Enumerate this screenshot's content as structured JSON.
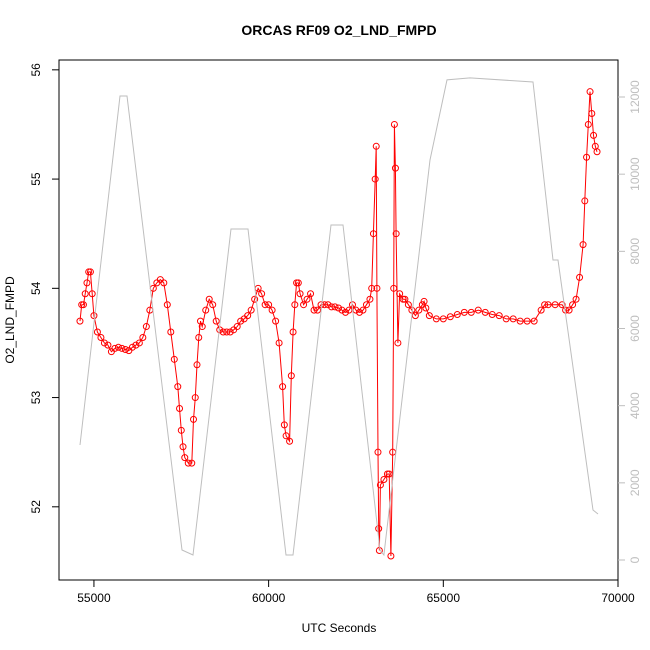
{
  "chart_data": {
    "type": "line",
    "title": "ORCAS RF09 O2_LND_FMPD",
    "x_label": "UTC Seconds",
    "y_label": "O2_LND_FMPD",
    "xlim": [
      54000,
      70000
    ],
    "xticks": [
      55000,
      60000,
      65000,
      70000
    ],
    "ylim": [
      51.33,
      56.09
    ],
    "yticks": [
      52,
      53,
      54,
      55,
      56
    ],
    "y2lim": [
      -518,
      12959
    ],
    "y2ticks": [
      0,
      2000,
      4000,
      6000,
      8000,
      10000,
      12000
    ],
    "series": [
      {
        "color": "#ff0000",
        "marker": "circle",
        "x": [
          54600,
          54650,
          54700,
          54750,
          54800,
          54850,
          54900,
          54950,
          55000,
          55100,
          55200,
          55300,
          55400,
          55500,
          55600,
          55700,
          55800,
          55900,
          56000,
          56100,
          56200,
          56300,
          56400,
          56500,
          56600,
          56700,
          56800,
          56900,
          57000,
          57100,
          57200,
          57300,
          57400,
          57450,
          57500,
          57550,
          57600,
          57700,
          57800,
          57850,
          57900,
          57950,
          58000,
          58050,
          58100,
          58200,
          58300,
          58400,
          58500,
          58600,
          58700,
          58800,
          58900,
          59000,
          59100,
          59200,
          59300,
          59400,
          59500,
          59600,
          59700,
          59800,
          59900,
          60000,
          60100,
          60200,
          60300,
          60400,
          60450,
          60500,
          60600,
          60650,
          60700,
          60750,
          60800,
          60850,
          60900,
          61000,
          61100,
          61200,
          61300,
          61400,
          61500,
          61600,
          61700,
          61800,
          61900,
          62000,
          62100,
          62200,
          62300,
          62400,
          62500,
          62600,
          62700,
          62800,
          62900,
          62950,
          63000,
          63050,
          63080,
          63100,
          63130,
          63150,
          63170,
          63200,
          63300,
          63400,
          63450,
          63500,
          63550,
          63580,
          63600,
          63630,
          63650,
          63700,
          63750,
          63850,
          63900,
          64000,
          64100,
          64200,
          64300,
          64400,
          64450,
          64500,
          64600,
          64800,
          65000,
          65200,
          65400,
          65600,
          65800,
          66000,
          66200,
          66400,
          66600,
          66800,
          67000,
          67200,
          67400,
          67600,
          67800,
          67900,
          68000,
          68200,
          68400,
          68500,
          68600,
          68700,
          68800,
          68900,
          69000,
          69050,
          69100,
          69150,
          69200,
          69250,
          69300,
          69350,
          69400
        ],
        "values": [
          53.7,
          53.85,
          53.85,
          53.95,
          54.05,
          54.15,
          54.15,
          53.95,
          53.75,
          53.6,
          53.55,
          53.5,
          53.48,
          53.42,
          53.45,
          53.46,
          53.45,
          53.44,
          53.43,
          53.46,
          53.48,
          53.5,
          53.55,
          53.65,
          53.8,
          54.0,
          54.05,
          54.08,
          54.05,
          53.85,
          53.6,
          53.35,
          53.1,
          52.9,
          52.7,
          52.55,
          52.45,
          52.4,
          52.4,
          52.8,
          53.0,
          53.3,
          53.55,
          53.7,
          53.65,
          53.8,
          53.9,
          53.85,
          53.7,
          53.62,
          53.6,
          53.6,
          53.6,
          53.62,
          53.65,
          53.7,
          53.72,
          53.75,
          53.8,
          53.9,
          54.0,
          53.95,
          53.85,
          53.85,
          53.8,
          53.7,
          53.5,
          53.1,
          52.75,
          52.65,
          52.6,
          53.2,
          53.6,
          53.85,
          54.05,
          54.05,
          53.95,
          53.85,
          53.9,
          53.95,
          53.8,
          53.8,
          53.85,
          53.85,
          53.85,
          53.83,
          53.83,
          53.82,
          53.8,
          53.78,
          53.8,
          53.85,
          53.8,
          53.78,
          53.8,
          53.85,
          53.9,
          54.0,
          54.5,
          55.0,
          55.3,
          54.0,
          52.5,
          51.8,
          51.6,
          52.2,
          52.25,
          52.3,
          52.3,
          51.55,
          52.5,
          54.0,
          55.5,
          55.1,
          54.5,
          53.5,
          53.95,
          53.9,
          53.9,
          53.85,
          53.8,
          53.75,
          53.8,
          53.85,
          53.88,
          53.82,
          53.75,
          53.72,
          53.72,
          53.74,
          53.76,
          53.78,
          53.78,
          53.8,
          53.78,
          53.76,
          53.75,
          53.72,
          53.72,
          53.7,
          53.7,
          53.7,
          53.8,
          53.85,
          53.85,
          53.85,
          53.85,
          53.8,
          53.8,
          53.85,
          53.9,
          54.1,
          54.4,
          54.8,
          55.2,
          55.5,
          55.8,
          55.6,
          55.4,
          55.3,
          55.25
        ]
      },
      {
        "color": "#bebebe",
        "axis": "y2",
        "x": [
          54601,
          55746,
          55946,
          57521,
          57836,
          58923,
          59410,
          60498,
          60698,
          61786,
          62129,
          63188,
          63300,
          64620,
          65106,
          65764,
          67567,
          68140,
          68283,
          69285,
          69428
        ],
        "values": [
          2981,
          12027,
          12027,
          259,
          130,
          8580,
          8580,
          130,
          130,
          8683,
          8683,
          259,
          130,
          10368,
          12442,
          12494,
          12390,
          7776,
          7776,
          1296,
          1192
        ]
      }
    ]
  }
}
